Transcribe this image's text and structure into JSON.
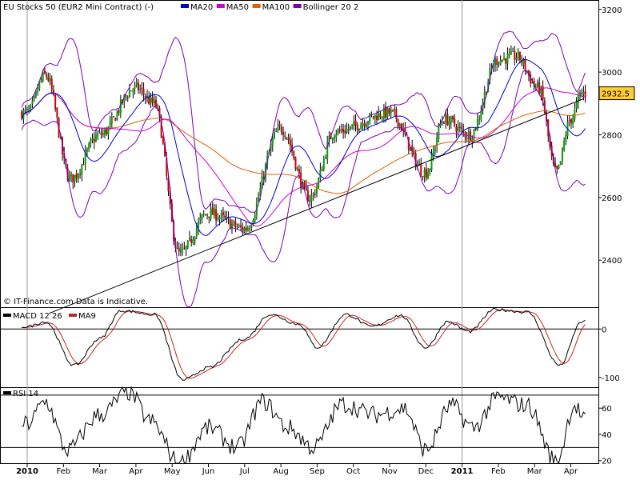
{
  "chart_data": [
    {
      "type": "candlestick",
      "title": "EU Stocks 50 (EUR2 Mini Contract) (-)",
      "legend": [
        {
          "label": "MA20",
          "color": "#0000cc"
        },
        {
          "label": "MA50",
          "color": "#cc00cc"
        },
        {
          "label": "MA100",
          "color": "#e06000"
        },
        {
          "label": "Bollinger 20 2",
          "color": "#7a00b8"
        }
      ],
      "yticks": [
        2400,
        2600,
        2800,
        3000,
        3200
      ],
      "ylim": [
        2250,
        3230
      ],
      "last_value": "2932.5",
      "note": "© IT-Finance.com Data is Indicative.",
      "trendline": [
        {
          "month": 0.6,
          "value": 2230
        },
        {
          "month": 15.35,
          "value": 2915
        }
      ],
      "key_points": [
        {
          "month": 0.0,
          "value": 2870
        },
        {
          "month": 0.5,
          "value": 2990
        },
        {
          "month": 1.2,
          "value": 2660
        },
        {
          "month": 2.0,
          "value": 2800
        },
        {
          "month": 3.0,
          "value": 2950
        },
        {
          "month": 3.5,
          "value": 2900
        },
        {
          "month": 4.2,
          "value": 2420
        },
        {
          "month": 5.0,
          "value": 2550
        },
        {
          "month": 6.0,
          "value": 2500
        },
        {
          "month": 7.0,
          "value": 2820
        },
        {
          "month": 7.8,
          "value": 2600
        },
        {
          "month": 8.5,
          "value": 2810
        },
        {
          "month": 10.0,
          "value": 2870
        },
        {
          "month": 11.0,
          "value": 2680
        },
        {
          "month": 11.5,
          "value": 2850
        },
        {
          "month": 12.2,
          "value": 2800
        },
        {
          "month": 13.0,
          "value": 3040
        },
        {
          "month": 13.5,
          "value": 3050
        },
        {
          "month": 14.1,
          "value": 2950
        },
        {
          "month": 14.6,
          "value": 2680
        },
        {
          "month": 15.0,
          "value": 2850
        },
        {
          "month": 15.3,
          "value": 2932.5
        }
      ]
    },
    {
      "type": "line",
      "legend": [
        {
          "label": "MACD 12 26",
          "color": "#000000"
        },
        {
          "label": "MA9",
          "color": "#cc2222"
        }
      ],
      "yticks": [
        0,
        -100
      ],
      "ylim": [
        -120,
        45
      ],
      "key_points": [
        {
          "month": 0.0,
          "value": 5
        },
        {
          "month": 0.5,
          "value": 15
        },
        {
          "month": 1.3,
          "value": -75
        },
        {
          "month": 2.0,
          "value": -20
        },
        {
          "month": 2.6,
          "value": 38
        },
        {
          "month": 3.5,
          "value": 30
        },
        {
          "month": 4.3,
          "value": -105
        },
        {
          "month": 5.0,
          "value": -80
        },
        {
          "month": 6.0,
          "value": -20
        },
        {
          "month": 6.7,
          "value": 30
        },
        {
          "month": 7.5,
          "value": 10
        },
        {
          "month": 8.0,
          "value": -38
        },
        {
          "month": 8.8,
          "value": 30
        },
        {
          "month": 9.5,
          "value": 5
        },
        {
          "month": 10.3,
          "value": 28
        },
        {
          "month": 11.0,
          "value": -38
        },
        {
          "month": 11.6,
          "value": 15
        },
        {
          "month": 12.2,
          "value": -5
        },
        {
          "month": 12.9,
          "value": 40
        },
        {
          "month": 13.8,
          "value": 35
        },
        {
          "month": 14.7,
          "value": -75
        },
        {
          "month": 15.3,
          "value": 15
        }
      ]
    },
    {
      "type": "line",
      "legend": [
        {
          "label": "RSI 14",
          "color": "#000000"
        }
      ],
      "yticks": [
        20,
        40,
        60
      ],
      "ylim": [
        18,
        76
      ],
      "reference_lines": [
        30,
        70
      ],
      "key_points": [
        {
          "month": 0.0,
          "value": 48
        },
        {
          "month": 0.5,
          "value": 65
        },
        {
          "month": 1.1,
          "value": 28
        },
        {
          "month": 2.0,
          "value": 55
        },
        {
          "month": 2.8,
          "value": 72
        },
        {
          "month": 3.4,
          "value": 50
        },
        {
          "month": 4.2,
          "value": 18
        },
        {
          "month": 5.0,
          "value": 45
        },
        {
          "month": 5.8,
          "value": 30
        },
        {
          "month": 6.5,
          "value": 65
        },
        {
          "month": 7.2,
          "value": 45
        },
        {
          "month": 7.9,
          "value": 30
        },
        {
          "month": 8.7,
          "value": 63
        },
        {
          "month": 9.6,
          "value": 55
        },
        {
          "month": 10.4,
          "value": 60
        },
        {
          "month": 11.0,
          "value": 28
        },
        {
          "month": 11.7,
          "value": 62
        },
        {
          "month": 12.3,
          "value": 45
        },
        {
          "month": 13.0,
          "value": 68
        },
        {
          "month": 13.8,
          "value": 62
        },
        {
          "month": 14.6,
          "value": 19
        },
        {
          "month": 15.1,
          "value": 62
        },
        {
          "month": 15.4,
          "value": 50
        }
      ]
    }
  ],
  "x_axis": {
    "labels": [
      {
        "month": 0,
        "label": "2010"
      },
      {
        "month": 1,
        "label": "Feb"
      },
      {
        "month": 2,
        "label": "Mar"
      },
      {
        "month": 3,
        "label": "Apr"
      },
      {
        "month": 4,
        "label": "May"
      },
      {
        "month": 5,
        "label": "Jun"
      },
      {
        "month": 6,
        "label": "Jul"
      },
      {
        "month": 7,
        "label": "Aug"
      },
      {
        "month": 8,
        "label": "Sep"
      },
      {
        "month": 9,
        "label": "Oct"
      },
      {
        "month": 10,
        "label": "Nov"
      },
      {
        "month": 11,
        "label": "Dec"
      },
      {
        "month": 12,
        "label": "2011"
      },
      {
        "month": 13,
        "label": "Feb"
      },
      {
        "month": 14,
        "label": "Mar"
      },
      {
        "month": 15,
        "label": "Apr"
      }
    ],
    "year_marks": [
      0,
      12
    ]
  }
}
